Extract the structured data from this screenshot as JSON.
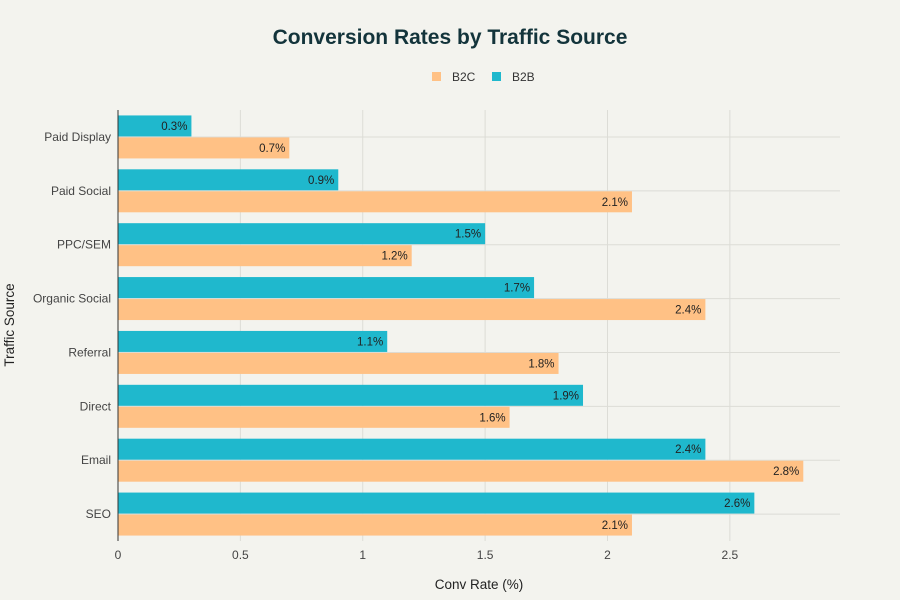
{
  "chart_data": {
    "type": "bar",
    "orientation": "horizontal",
    "title": "Conversion Rates by Traffic Source",
    "xlabel": "Conv Rate (%)",
    "ylabel": "Traffic Source",
    "categories": [
      "Paid Display",
      "Paid Social",
      "PPC/SEM",
      "Organic Social",
      "Referral",
      "Direct",
      "Email",
      "SEO"
    ],
    "series": [
      {
        "name": "B2B",
        "color": "#1fb8cd",
        "values": [
          0.3,
          0.9,
          1.5,
          1.7,
          1.1,
          1.9,
          2.4,
          2.6
        ],
        "labels": [
          "0.3%",
          "0.9%",
          "1.5%",
          "1.7%",
          "1.1%",
          "1.9%",
          "2.4%",
          "2.6%"
        ]
      },
      {
        "name": "B2C",
        "color": "#ffc185",
        "values": [
          0.7,
          2.1,
          1.2,
          2.4,
          1.8,
          1.6,
          2.8,
          2.1
        ],
        "labels": [
          "0.7%",
          "2.1%",
          "1.2%",
          "2.4%",
          "1.8%",
          "1.6%",
          "2.8%",
          "2.1%"
        ]
      }
    ],
    "legend": {
      "position": "top-center",
      "order": [
        "B2C",
        "B2B"
      ]
    },
    "xticks": [
      "0",
      "0.5",
      "1",
      "1.5",
      "2",
      "2.5"
    ],
    "xtick_values": [
      0,
      0.5,
      1,
      1.5,
      2,
      2.5
    ],
    "xlim": [
      0,
      2.95
    ],
    "grid": true
  }
}
